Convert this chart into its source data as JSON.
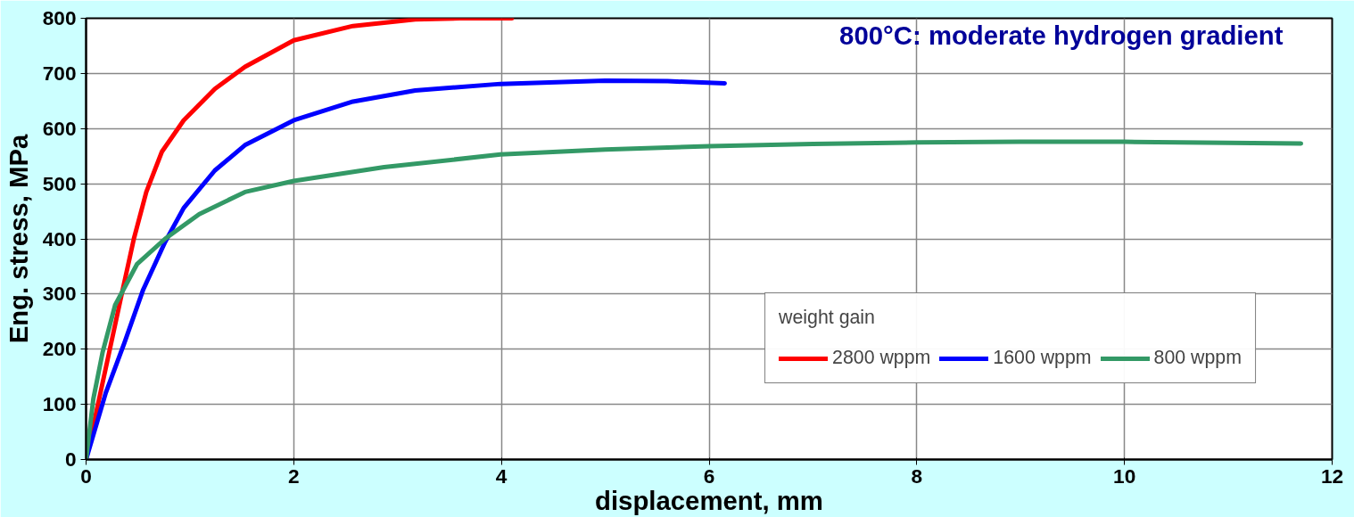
{
  "chart_data": {
    "type": "line",
    "title": "800°C: moderate hydrogen gradient",
    "xlabel": "displacement, mm",
    "ylabel": "Eng. stress, MPa",
    "legend_title": "weight gain",
    "xlim": [
      0,
      12
    ],
    "ylim": [
      0,
      800
    ],
    "xticks": [
      0,
      2,
      4,
      6,
      8,
      10,
      12
    ],
    "yticks": [
      0,
      100,
      200,
      300,
      400,
      500,
      600,
      700,
      800
    ],
    "grid": true,
    "legend": "bottom right",
    "marker": "none",
    "line_style": "solid",
    "series": [
      {
        "name": "2800 wppm",
        "color": "#ff0000",
        "x": [
          0,
          0.19,
          0.34,
          0.46,
          0.58,
          0.73,
          0.94,
          1.24,
          1.53,
          2.0,
          2.57,
          3.17,
          3.6,
          4.1
        ],
        "values": [
          0,
          166,
          297,
          400,
          485,
          558,
          615,
          672,
          712,
          760,
          786,
          798,
          800,
          800
        ]
      },
      {
        "name": "1600 wppm",
        "color": "#0000ff",
        "x": [
          0,
          0.19,
          0.37,
          0.55,
          0.76,
          0.94,
          1.24,
          1.53,
          2.0,
          2.57,
          3.17,
          3.99,
          5.0,
          5.6,
          6.15
        ],
        "values": [
          0,
          121,
          212,
          308,
          394,
          456,
          524,
          570,
          615,
          649,
          669,
          681,
          687,
          686,
          682
        ]
      },
      {
        "name": "800 wppm",
        "color": "#339966",
        "x": [
          0,
          0.07,
          0.16,
          0.28,
          0.49,
          0.76,
          1.09,
          1.53,
          2.0,
          2.87,
          3.99,
          5.0,
          6.0,
          7.0,
          8.0,
          9.0,
          10.0,
          11.0,
          11.7
        ],
        "values": [
          0,
          110,
          195,
          280,
          354,
          400,
          445,
          485,
          505,
          530,
          553,
          562,
          568,
          572,
          575,
          576,
          576,
          574,
          573
        ]
      }
    ]
  }
}
